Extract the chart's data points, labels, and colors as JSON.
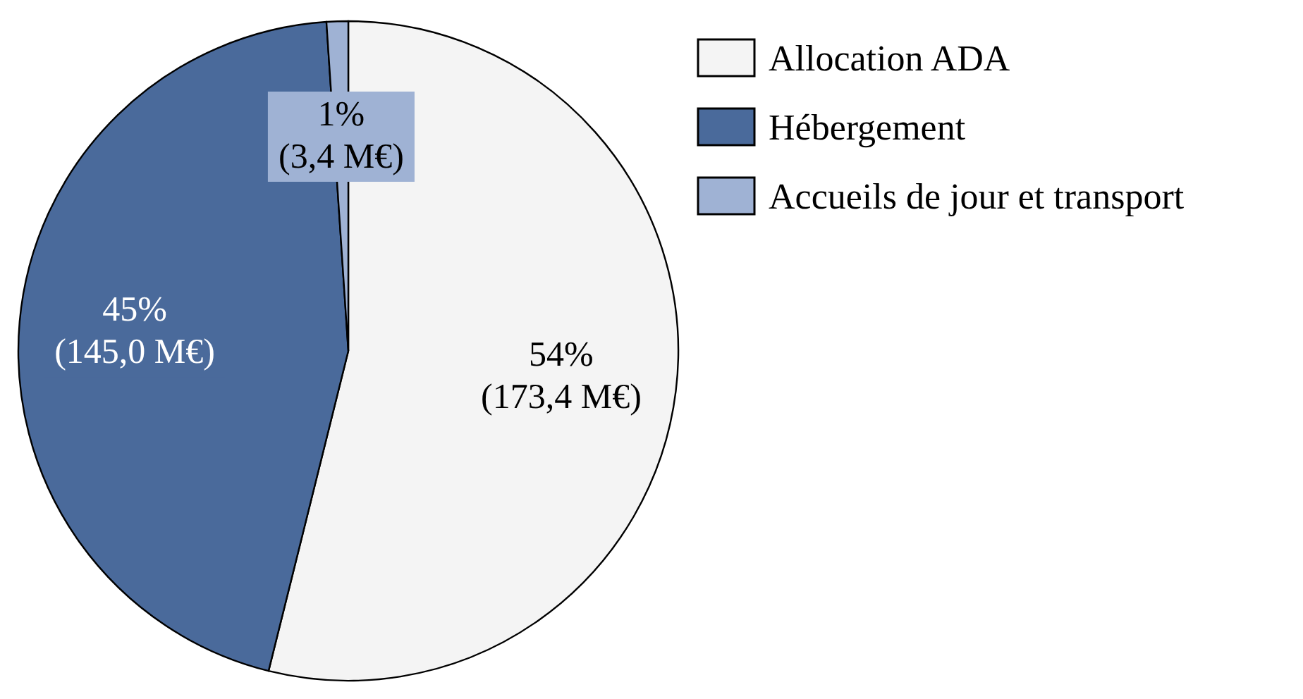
{
  "chart_data": {
    "type": "pie",
    "categories": [
      "Allocation ADA",
      "Hébergement",
      "Accueils de jour et transport"
    ],
    "values": [
      173.4,
      145.0,
      3.4
    ],
    "colors": [
      "#f4f4f4",
      "#4a6a9b",
      "#9fb2d4"
    ],
    "value_labels": [
      "54%\n(173,4 M€)",
      "45%\n(145,0 M€)",
      "1%\n(3,4 M€)"
    ],
    "legend": "right"
  }
}
